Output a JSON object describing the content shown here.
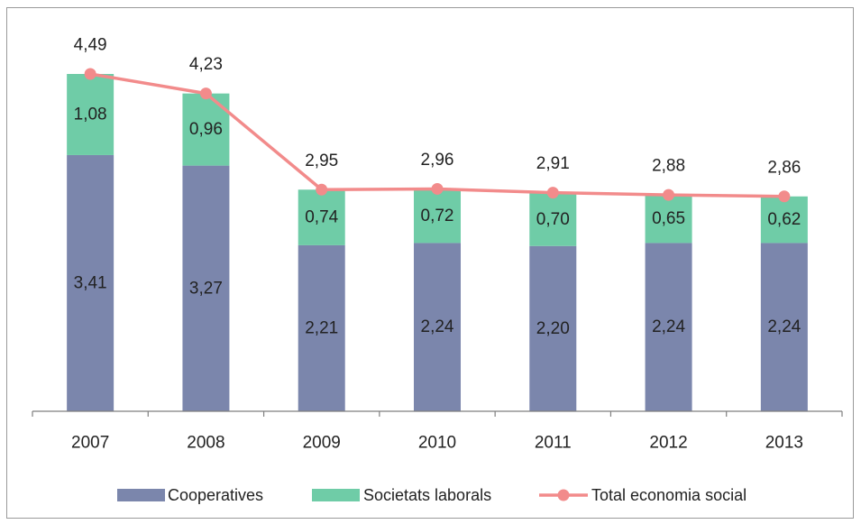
{
  "chart_data": {
    "type": "bar",
    "stacked": true,
    "categories": [
      "2007",
      "2008",
      "2009",
      "2010",
      "2011",
      "2012",
      "2013"
    ],
    "series": [
      {
        "name": "Cooperatives",
        "kind": "bar",
        "color": "#7b86ac",
        "values": [
          3.41,
          3.27,
          2.21,
          2.24,
          2.2,
          2.24,
          2.24
        ],
        "labels": [
          "3,41",
          "3,27",
          "2,21",
          "2,24",
          "2,20",
          "2,24",
          "2,24"
        ]
      },
      {
        "name": "Societats laborals",
        "kind": "bar",
        "color": "#6fcca7",
        "values": [
          1.08,
          0.96,
          0.74,
          0.72,
          0.7,
          0.65,
          0.62
        ],
        "labels": [
          "1,08",
          "0,96",
          "0,74",
          "0,72",
          "0,70",
          "0,65",
          "0,62"
        ]
      },
      {
        "name": "Total economia social",
        "kind": "line",
        "color": "#f28b8b",
        "values": [
          4.49,
          4.23,
          2.95,
          2.96,
          2.91,
          2.88,
          2.86
        ],
        "labels": [
          "4,49",
          "4,23",
          "2,95",
          "2,96",
          "2,91",
          "2,88",
          "2,86"
        ]
      }
    ],
    "ylim": [
      0,
      4.49
    ],
    "grid": false,
    "legend": "bottom"
  }
}
